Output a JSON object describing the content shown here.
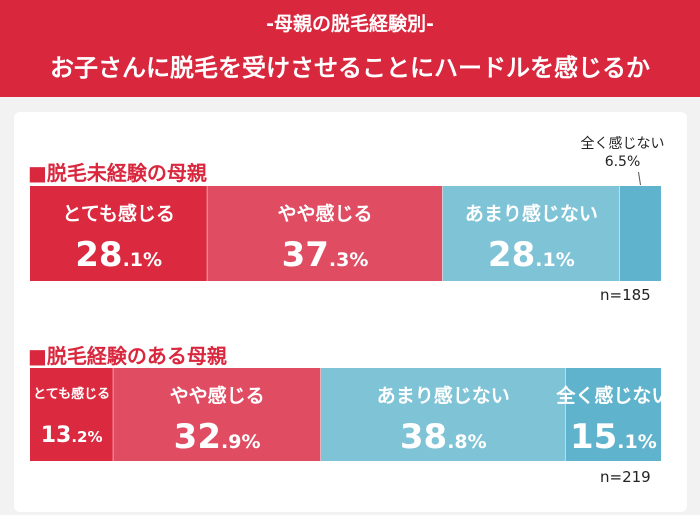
{
  "header": {
    "subtitle": "-母親の脱毛経験別-",
    "title": "お子さんに脱毛を受けさせることにハードルを感じるか"
  },
  "colors": {
    "header_bg": "#d9273e",
    "seg1": "#db2a3f",
    "seg2": "#e04c62",
    "seg3": "#7fc3d6",
    "seg4": "#5fb3cc",
    "text_light": "#ffffff",
    "text_dark": "#222222"
  },
  "chart_data": [
    {
      "type": "bar",
      "stacked": true,
      "orientation": "horizontal",
      "title": "■脱毛未経験の母親",
      "n_label": "n=185",
      "series": [
        {
          "name": "とても感じる",
          "value": 28.1,
          "int": "28",
          "dec": ".1%"
        },
        {
          "name": "やや感じる",
          "value": 37.3,
          "int": "37",
          "dec": ".3%"
        },
        {
          "name": "あまり感じない",
          "value": 28.1,
          "int": "28",
          "dec": ".1%"
        },
        {
          "name": "全く感じない",
          "value": 6.5,
          "label_outside": "6.5%"
        }
      ]
    },
    {
      "type": "bar",
      "stacked": true,
      "orientation": "horizontal",
      "title": "■脱毛経験のある母親",
      "n_label": "n=219",
      "series": [
        {
          "name": "とても感じる",
          "value": 13.2,
          "int": "13",
          "dec": ".2%"
        },
        {
          "name": "やや感じる",
          "value": 32.9,
          "int": "32",
          "dec": ".9%"
        },
        {
          "name": "あまり感じない",
          "value": 38.8,
          "int": "38",
          "dec": ".8%"
        },
        {
          "name": "全く感じない",
          "value": 15.1,
          "int": "15",
          "dec": ".1%"
        }
      ]
    }
  ]
}
